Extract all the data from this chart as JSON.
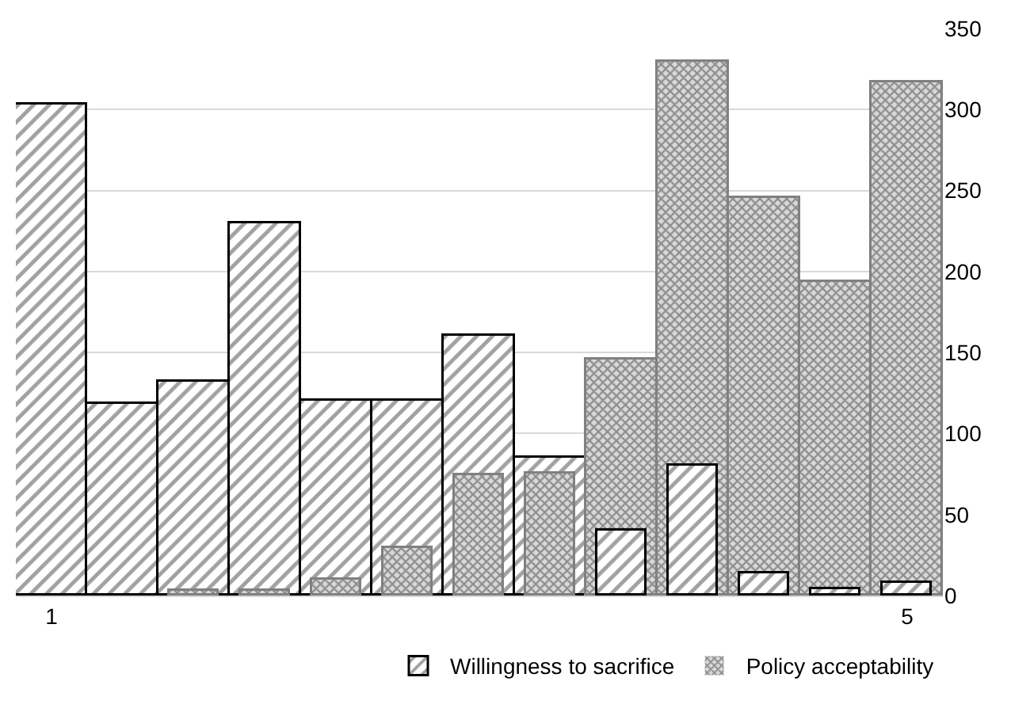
{
  "chart_data": {
    "type": "bar",
    "categories": [
      "1",
      null,
      null,
      null,
      null,
      null,
      null,
      null,
      null,
      null,
      null,
      null,
      "5"
    ],
    "series": [
      {
        "name": "Willingness to sacrifice",
        "color": "#000000",
        "values": [
          303,
          118,
          132,
          230,
          120,
          120,
          160,
          85,
          40,
          80,
          14,
          4,
          8
        ]
      },
      {
        "name": "Policy acceptability",
        "color": "#808080",
        "values": [
          0,
          0,
          3,
          3,
          10,
          29,
          74,
          75,
          146,
          329,
          245,
          194,
          317
        ]
      }
    ],
    "ylim": [
      0,
      350
    ],
    "yticks": [
      0,
      50,
      100,
      150,
      200,
      250,
      300,
      350
    ],
    "grid": "y",
    "legend": "bottom"
  }
}
